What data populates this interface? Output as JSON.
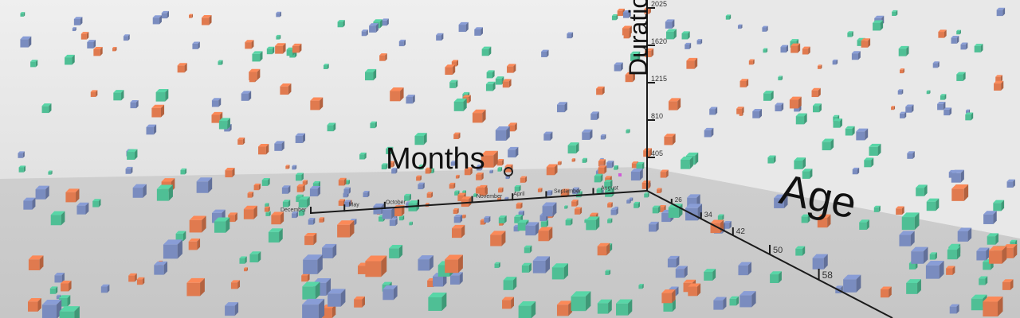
{
  "chart_data": {
    "type": "scatter",
    "view": "3d",
    "axes": {
      "x": {
        "label": "Months",
        "tick_labels": [
          "December",
          "May",
          "October",
          "",
          "November",
          "April",
          "September",
          "August"
        ]
      },
      "y": {
        "label": "Duration",
        "tick_labels": [
          "405",
          "810",
          "1215",
          "1620",
          "2025"
        ]
      },
      "z": {
        "label": "Age",
        "tick_labels": [
          "26",
          "34",
          "42",
          "50",
          "58"
        ]
      }
    },
    "grid": false,
    "colors": {
      "green": "#4fbf95",
      "blue": "#7a8cbf",
      "orange": "#e07a4f",
      "magenta": "#d05ad6"
    },
    "point_colors": [
      "green",
      "blue",
      "orange"
    ]
  }
}
